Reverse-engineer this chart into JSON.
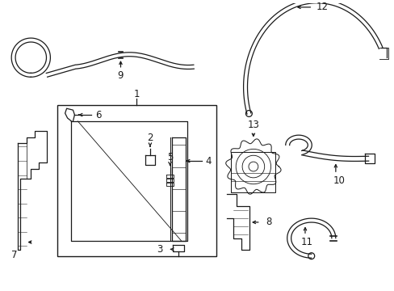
{
  "bg_color": "#ffffff",
  "line_color": "#1a1a1a",
  "figsize": [
    4.89,
    3.6
  ],
  "dpi": 100,
  "font_size": 8.5
}
